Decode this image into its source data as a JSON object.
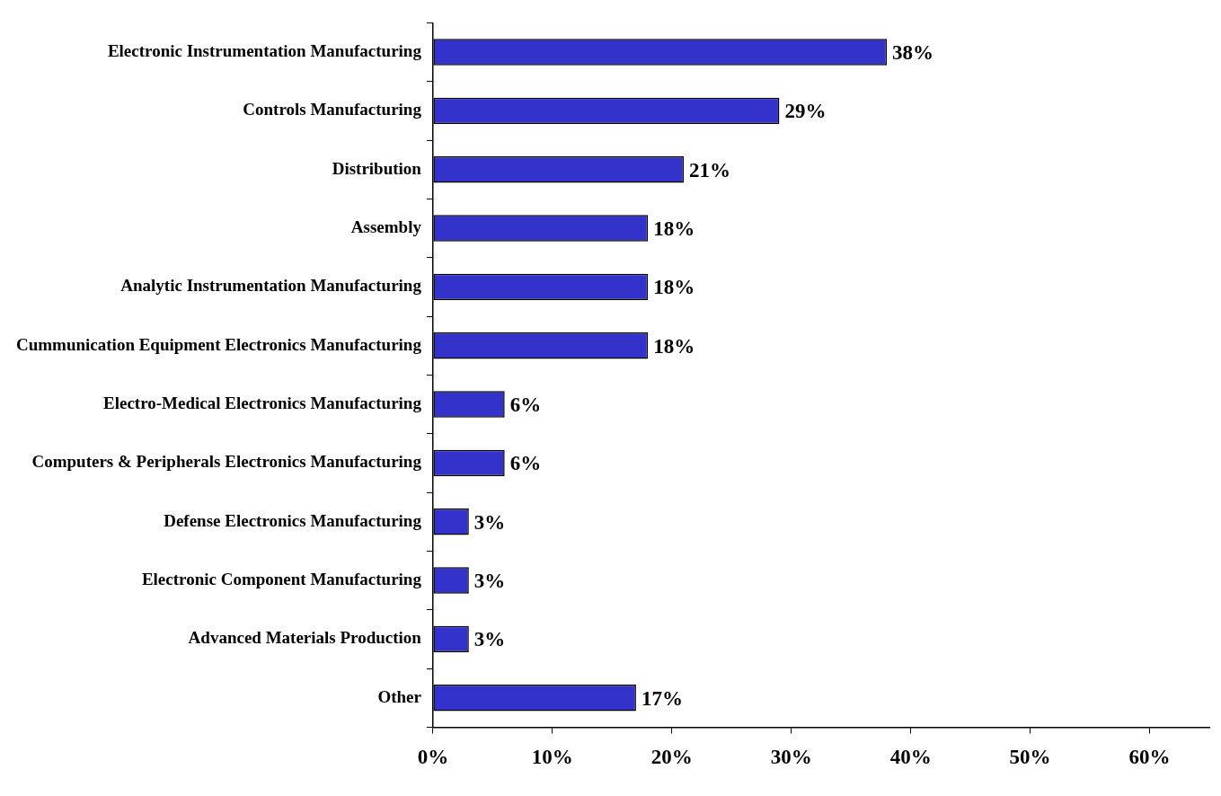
{
  "chart_data": {
    "type": "bar",
    "orientation": "horizontal",
    "categories": [
      "Electronic Instrumentation Manufacturing",
      "Controls Manufacturing",
      "Distribution",
      "Assembly",
      "Analytic Instrumentation Manufacturing",
      "Cummunication Equipment Electronics Manufacturing",
      "Electro-Medical Electronics Manufacturing",
      "Computers & Peripherals Electronics Manufacturing",
      "Defense Electronics Manufacturing",
      "Electronic Component Manufacturing",
      "Advanced Materials Production",
      "Other"
    ],
    "values": [
      38,
      29,
      21,
      18,
      18,
      18,
      6,
      6,
      3,
      3,
      3,
      17
    ],
    "value_labels": [
      "38%",
      "29%",
      "21%",
      "18%",
      "18%",
      "18%",
      "6%",
      "6%",
      "3%",
      "3%",
      "3%",
      "17%"
    ],
    "color": "#3333cc",
    "xlim": [
      0,
      65
    ],
    "xticks": [
      {
        "value": 0,
        "label": "0%"
      },
      {
        "value": 10,
        "label": "10%"
      },
      {
        "value": 20,
        "label": "20%"
      },
      {
        "value": 30,
        "label": "30%"
      },
      {
        "value": 40,
        "label": "40%"
      },
      {
        "value": 50,
        "label": "50%"
      },
      {
        "value": 60,
        "label": "60%"
      }
    ],
    "grid": false,
    "legend": false
  }
}
